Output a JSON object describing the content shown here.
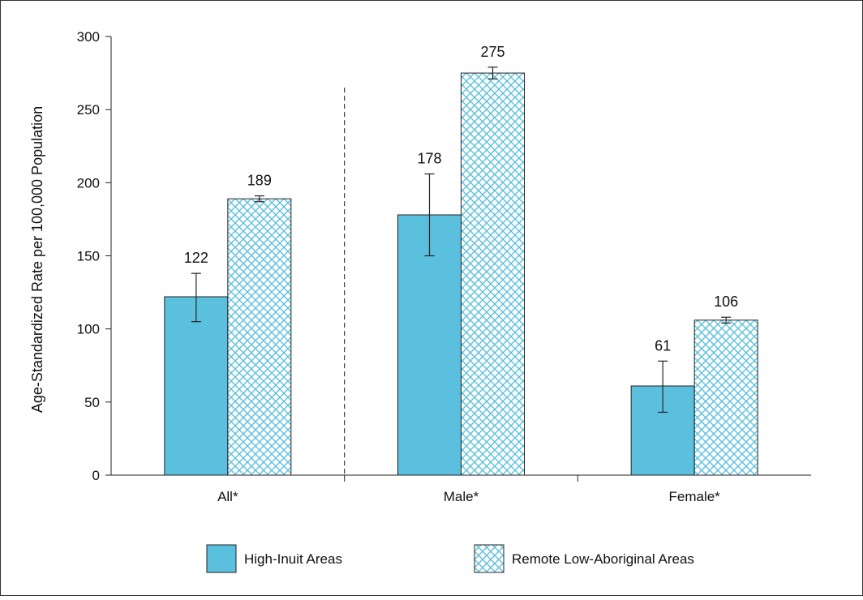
{
  "chart_data": {
    "type": "bar",
    "title": "",
    "xlabel": "",
    "ylabel": "Age-Standardized Rate per 100,000 Population",
    "ylim": [
      0,
      300
    ],
    "yticks": [
      0,
      50,
      100,
      150,
      200,
      250,
      300
    ],
    "categories": [
      "All*",
      "Male*",
      "Female*"
    ],
    "series": [
      {
        "name": "High-Inuit Areas",
        "color": "#5bc0de",
        "pattern": "solid",
        "values": [
          122,
          178,
          61
        ],
        "labels": [
          "122",
          "178",
          "61"
        ],
        "error_low": [
          105,
          150,
          43
        ],
        "error_high": [
          138,
          206,
          78
        ]
      },
      {
        "name": "Remote Low-Aboriginal Areas",
        "color": "#5bc0de",
        "pattern": "crosshatch",
        "values": [
          189,
          275,
          106
        ],
        "labels": [
          "189",
          "275",
          "106"
        ],
        "error_low": [
          187,
          271,
          104
        ],
        "error_high": [
          191,
          279,
          108
        ]
      }
    ],
    "separator_after_category": "All*",
    "legend_position": "bottom",
    "grid": false
  }
}
